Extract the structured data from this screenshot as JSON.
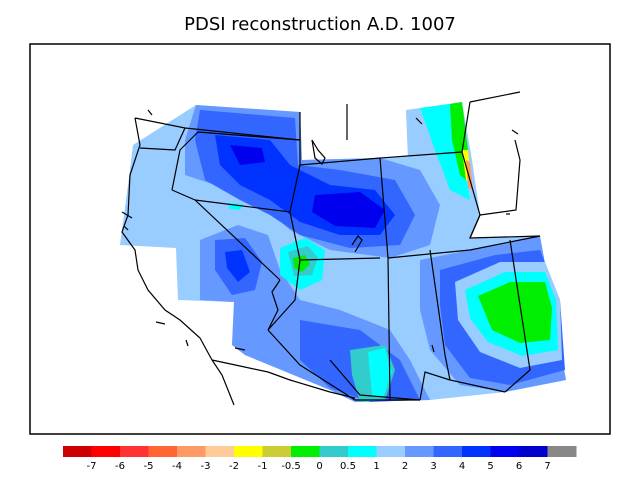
{
  "title": "PDSI reconstruction A.D. 1007",
  "legend": {
    "colors": [
      "#cc0000",
      "#ff0000",
      "#ff3333",
      "#ff6633",
      "#ff9966",
      "#ffcc99",
      "#ffff00",
      "#cccc33",
      "#00ee00",
      "#33cccc",
      "#00ffff",
      "#99ccff",
      "#6699ff",
      "#3366ff",
      "#0033ff",
      "#0000ee",
      "#0000cc",
      "#888888"
    ],
    "labels": [
      "-7",
      "-6",
      "-5",
      "-4",
      "-3",
      "-2",
      "-1",
      "-0.5",
      "0",
      "0.5",
      "1",
      "2",
      "3",
      "4",
      "5",
      "6",
      "7"
    ]
  },
  "map_palette": {
    "lightblue": "#99ccff",
    "medblue": "#6699ff",
    "blue": "#3366ff",
    "royal": "#0033ff",
    "deep": "#0000ee",
    "cyan": "#00ffff",
    "teal": "#33cccc",
    "green": "#00ee00",
    "yellow": "#ffff00",
    "orange": "#ff9966",
    "red": "#ff3333"
  }
}
